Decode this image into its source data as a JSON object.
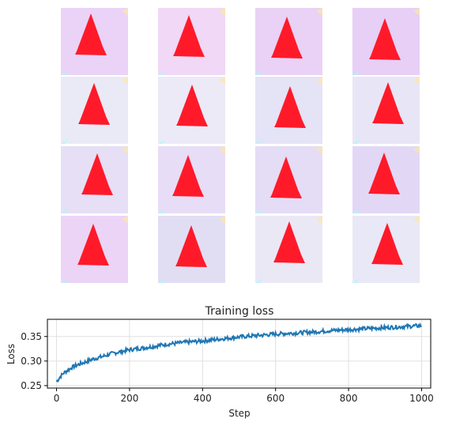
{
  "figure": {
    "sample_grid": {
      "rows": 4,
      "cols": 4,
      "description_tag": "generated-samples",
      "cells": [
        {
          "bg": "#ead3f7",
          "shape": "#ff1a2a"
        },
        {
          "bg": "#f0d8f6",
          "shape": "#ff1a2a"
        },
        {
          "bg": "#e9d2f5",
          "shape": "#ff1a2a"
        },
        {
          "bg": "#e7cff6",
          "shape": "#ff1a2a"
        },
        {
          "bg": "#eaeaf6",
          "shape": "#ff1a2a"
        },
        {
          "bg": "#eceaf7",
          "shape": "#ff1a2a"
        },
        {
          "bg": "#e5e3f6",
          "shape": "#ff1a2a"
        },
        {
          "bg": "#e8e6f6",
          "shape": "#ff1a2a"
        },
        {
          "bg": "#e6dff6",
          "shape": "#ff1a2a"
        },
        {
          "bg": "#e8ddf6",
          "shape": "#ff1a2a"
        },
        {
          "bg": "#e5dcf6",
          "shape": "#ff1a2a"
        },
        {
          "bg": "#e2d8f6",
          "shape": "#ff1a2a"
        },
        {
          "bg": "#ecd4f6",
          "shape": "#ff1a2a"
        },
        {
          "bg": "#e1def4",
          "shape": "#ff1a2a"
        },
        {
          "bg": "#ebe8f6",
          "shape": "#ff1a2a"
        },
        {
          "bg": "#e9e8f6",
          "shape": "#ff1a2a"
        }
      ]
    }
  },
  "chart_data": {
    "type": "line",
    "title": "Training loss",
    "xlabel": "Step",
    "ylabel": "Loss",
    "xlim": [
      -25,
      1025
    ],
    "ylim": [
      0.245,
      0.385
    ],
    "xticks": [
      0,
      200,
      400,
      600,
      800,
      1000
    ],
    "yticks": [
      0.25,
      0.3,
      0.35
    ],
    "ytick_labels": [
      "0.25",
      "0.30",
      "0.35"
    ],
    "grid": true,
    "line_color": "#1f77b4",
    "series": [
      {
        "x": [
          0,
          10,
          20,
          30,
          40,
          50,
          75,
          100,
          125,
          150,
          175,
          200,
          250,
          300,
          350,
          400,
          450,
          500,
          550,
          600,
          650,
          700,
          750,
          800,
          850,
          900,
          950,
          1000
        ],
        "values": [
          0.258,
          0.268,
          0.276,
          0.281,
          0.286,
          0.29,
          0.297,
          0.304,
          0.309,
          0.315,
          0.319,
          0.323,
          0.328,
          0.334,
          0.338,
          0.341,
          0.345,
          0.349,
          0.352,
          0.355,
          0.357,
          0.359,
          0.362,
          0.364,
          0.366,
          0.368,
          0.37,
          0.372
        ]
      }
    ]
  }
}
